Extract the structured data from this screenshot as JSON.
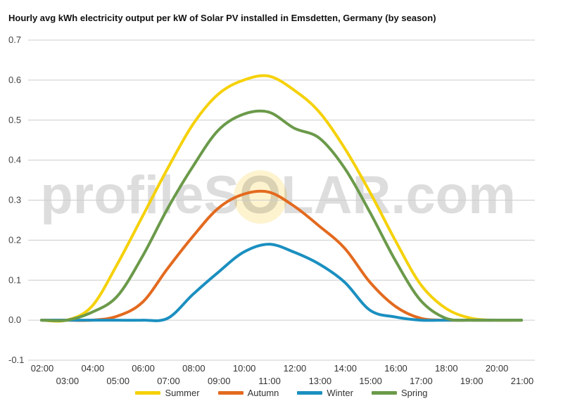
{
  "chart_data": {
    "type": "line",
    "title": "Hourly avg kWh electricity output per kW of Solar PV installed in Emsdetten, Germany (by season)",
    "xlabel": "",
    "ylabel": "",
    "ylim": [
      -0.1,
      0.7
    ],
    "yticks": [
      "-0.1",
      "0.0",
      "0.1",
      "0.2",
      "0.3",
      "0.4",
      "0.5",
      "0.6",
      "0.7"
    ],
    "x_labels": [
      "02:00",
      "03:00",
      "04:00",
      "05:00",
      "06:00",
      "07:00",
      "08:00",
      "09:00",
      "10:00",
      "11:00",
      "12:00",
      "13:00",
      "14:00",
      "15:00",
      "16:00",
      "17:00",
      "18:00",
      "19:00",
      "20:00",
      "21:00"
    ],
    "grid": true,
    "legend_position": "bottom",
    "watermark": "profileSOLAR.com",
    "series": [
      {
        "name": "Summer",
        "color": "#f5d10a",
        "values": [
          0.0,
          0.0,
          0.035,
          0.14,
          0.26,
          0.38,
          0.49,
          0.565,
          0.6,
          0.61,
          0.575,
          0.52,
          0.43,
          0.32,
          0.2,
          0.09,
          0.03,
          0.005,
          0.0,
          0.0
        ]
      },
      {
        "name": "Autumn",
        "color": "#e36a1f",
        "values": [
          0.0,
          0.0,
          0.0,
          0.01,
          0.045,
          0.13,
          0.21,
          0.28,
          0.315,
          0.32,
          0.285,
          0.235,
          0.18,
          0.095,
          0.035,
          0.005,
          0.0,
          0.0,
          0.0,
          0.0
        ]
      },
      {
        "name": "Winter",
        "color": "#1b8fc0",
        "values": [
          0.0,
          0.0,
          0.0,
          0.0,
          0.0,
          0.005,
          0.065,
          0.12,
          0.17,
          0.19,
          0.17,
          0.14,
          0.095,
          0.025,
          0.008,
          0.0,
          0.0,
          0.0,
          0.0,
          0.0
        ]
      },
      {
        "name": "Spring",
        "color": "#6b9a4a",
        "values": [
          0.0,
          0.0,
          0.02,
          0.06,
          0.16,
          0.28,
          0.385,
          0.475,
          0.515,
          0.52,
          0.48,
          0.455,
          0.38,
          0.27,
          0.15,
          0.05,
          0.005,
          0.0,
          0.0,
          0.0
        ]
      }
    ]
  }
}
